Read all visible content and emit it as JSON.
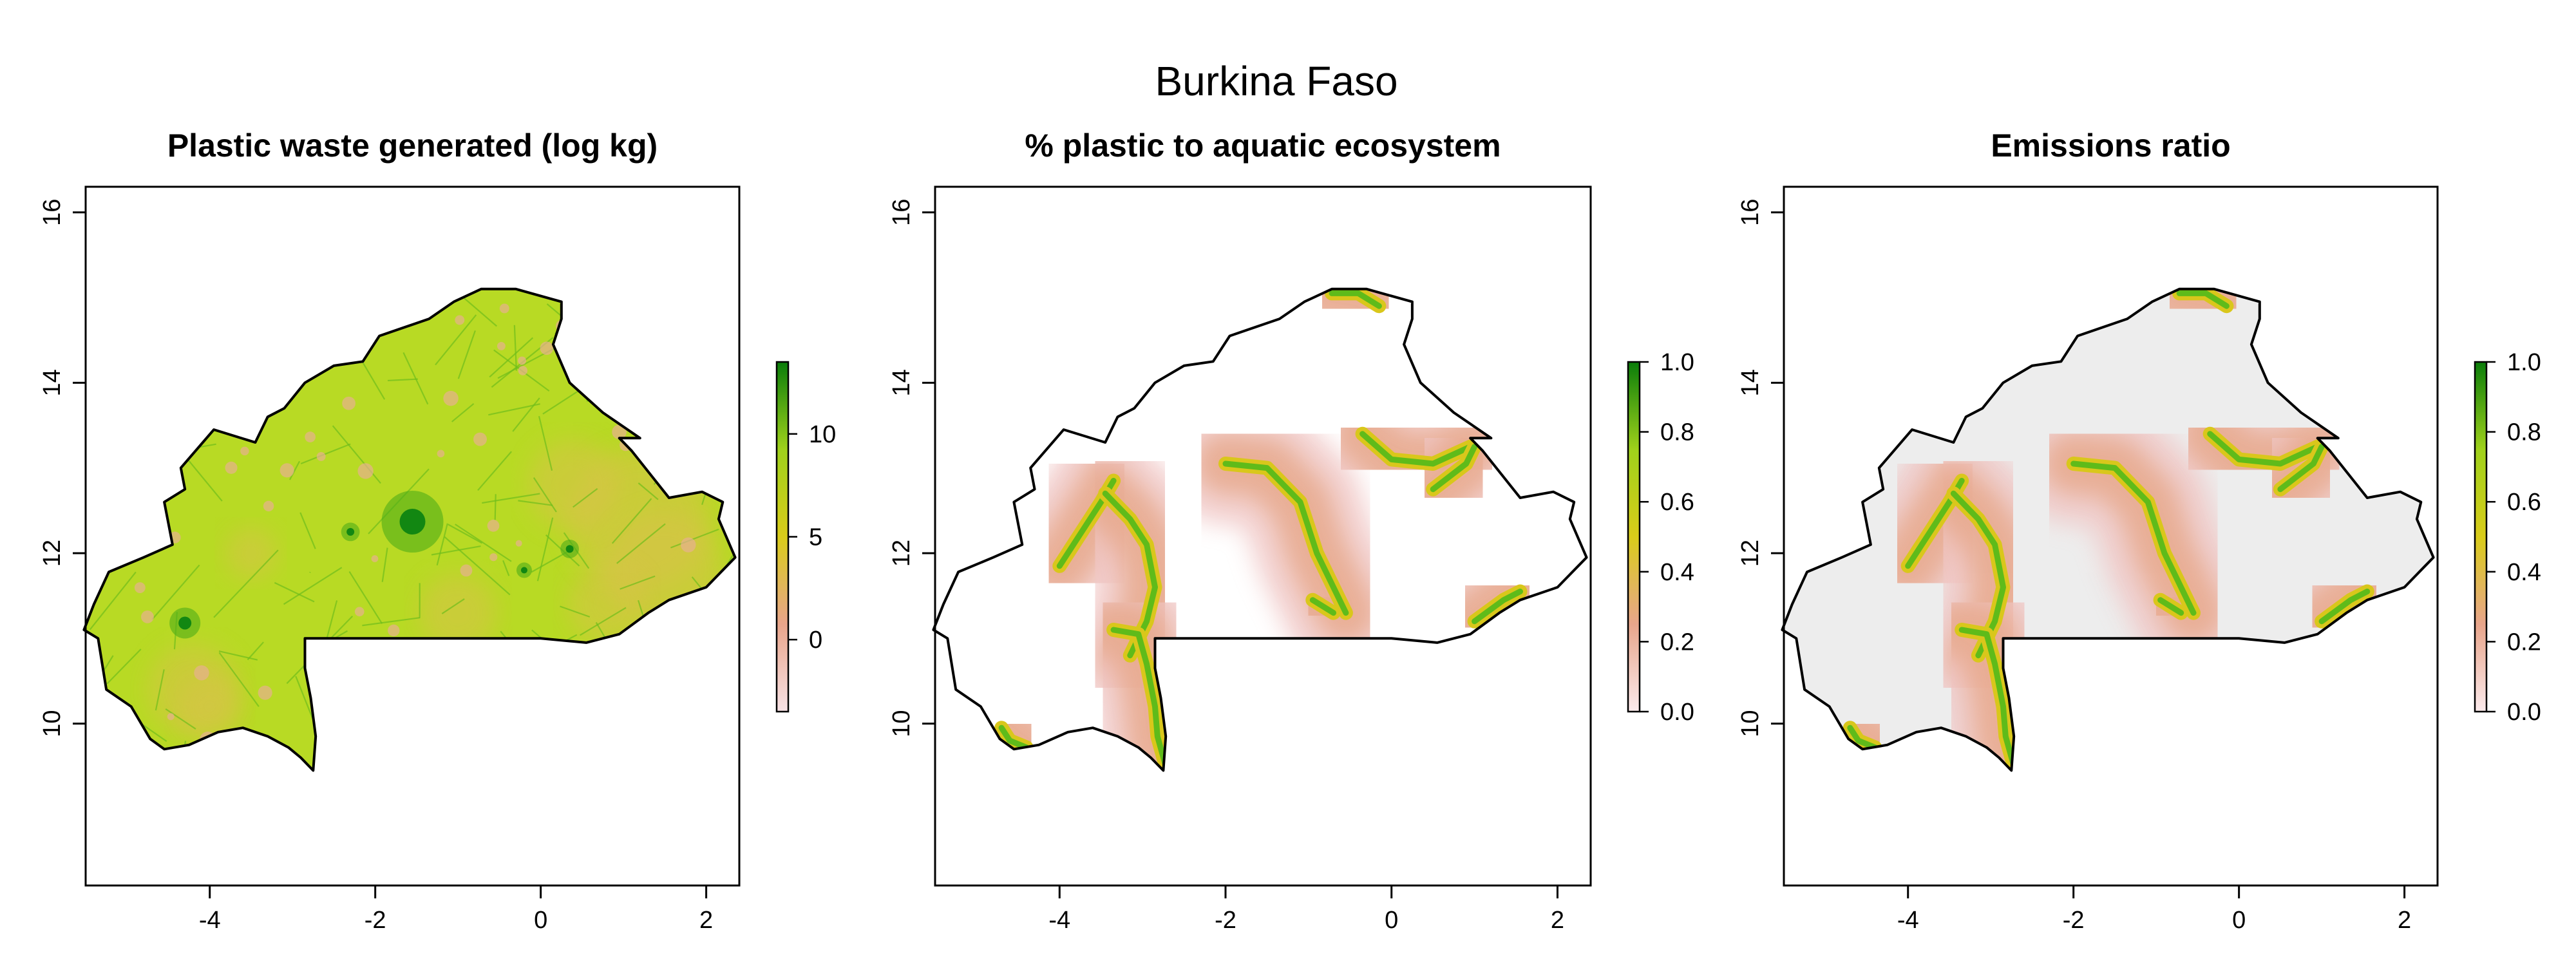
{
  "figure": {
    "title": "Burkina Faso"
  },
  "chart_data": [
    {
      "type": "heatmap",
      "title": "Plastic waste generated (log kg)",
      "xlim": [
        -5.5,
        2.4
      ],
      "ylim": [
        8.1,
        16.3
      ],
      "x_ticks": [
        "-4",
        "-2",
        "0",
        "2"
      ],
      "y_ticks": [
        "10",
        "12",
        "14",
        "16"
      ],
      "legend_ticks": [
        "0",
        "5",
        "10"
      ],
      "legend_range": [
        -3.5,
        13.5
      ],
      "legend_colors": [
        "#f7e2e5",
        "#e8a58b",
        "#d9cc1a",
        "#9fd11b",
        "#0a7d0a"
      ],
      "fill_color": "#b8da24",
      "legend_position": "right"
    },
    {
      "type": "heatmap",
      "title": "% plastic to aquatic ecosystem",
      "xlim": [
        -5.5,
        2.4
      ],
      "ylim": [
        8.1,
        16.3
      ],
      "x_ticks": [
        "-4",
        "-2",
        "0",
        "2"
      ],
      "y_ticks": [
        "10",
        "12",
        "14",
        "16"
      ],
      "legend_ticks": [
        "0.0",
        "0.2",
        "0.4",
        "0.6",
        "0.8",
        "1.0"
      ],
      "legend_range": [
        0,
        1
      ],
      "legend_colors": [
        "#fbeaec",
        "#e8a58b",
        "#d9cc1a",
        "#9fd11b",
        "#0a7d0a"
      ],
      "fill_color": "#ffffff",
      "legend_position": "right"
    },
    {
      "type": "heatmap",
      "title": "Emissions ratio",
      "xlim": [
        -5.5,
        2.4
      ],
      "ylim": [
        8.1,
        16.3
      ],
      "x_ticks": [
        "-4",
        "-2",
        "0",
        "2"
      ],
      "y_ticks": [
        "10",
        "12",
        "14",
        "16"
      ],
      "legend_ticks": [
        "0.0",
        "0.2",
        "0.4",
        "0.6",
        "0.8",
        "1.0"
      ],
      "legend_range": [
        0,
        1
      ],
      "legend_colors": [
        "#fbeaec",
        "#e8a58b",
        "#d9cc1a",
        "#9fd11b",
        "#0a7d0a"
      ],
      "fill_color": "#ededed",
      "legend_position": "right"
    }
  ]
}
